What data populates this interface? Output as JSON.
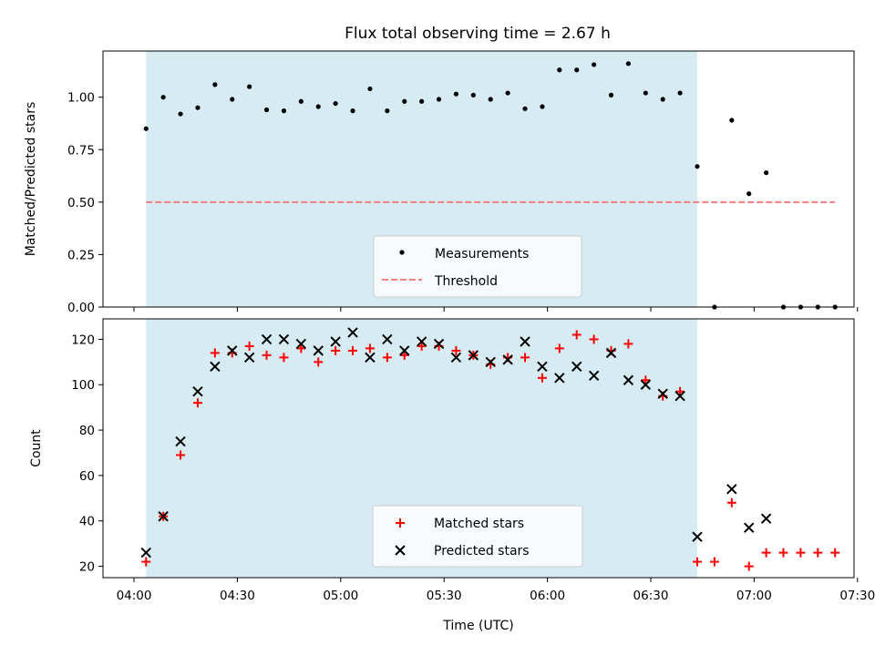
{
  "chart_data": [
    {
      "type": "scatter",
      "title": "Flux total observing time = 2.67 h",
      "ylabel": "Matched/Predicted stars",
      "ylim": [
        0,
        1.22
      ],
      "yticks": [
        "0.00",
        "0.25",
        "0.50",
        "0.75",
        "1.00"
      ],
      "xlim_minutes": [
        -9,
        209
      ],
      "shaded_span_minutes": [
        3.5,
        163.5
      ],
      "threshold": 0.5,
      "series": [
        {
          "name": "Measurements",
          "color": "#000000",
          "marker": "dot",
          "x": [
            3.5,
            8.5,
            13.5,
            18.5,
            23.5,
            28.5,
            33.5,
            38.5,
            43.5,
            48.5,
            53.5,
            58.5,
            63.5,
            68.5,
            73.5,
            78.5,
            83.5,
            88.5,
            93.5,
            98.5,
            103.5,
            108.5,
            113.5,
            118.5,
            123.5,
            128.5,
            133.5,
            138.5,
            143.5,
            148.5,
            153.5,
            158.5,
            163.5,
            168.5,
            173.5,
            178.5,
            183.5,
            188.5,
            193.5,
            198.5,
            203.5
          ],
          "y": [
            0.85,
            1.0,
            0.92,
            0.95,
            1.06,
            0.99,
            1.05,
            0.94,
            0.935,
            0.98,
            0.955,
            0.97,
            0.935,
            1.04,
            0.935,
            0.98,
            0.98,
            0.99,
            1.015,
            1.01,
            0.99,
            1.02,
            0.945,
            0.955,
            1.13,
            1.13,
            1.155,
            1.01,
            1.16,
            1.02,
            0.99,
            1.02,
            0.67,
            0.0,
            0.89,
            0.54,
            0.64,
            0.0,
            0.0,
            0.0,
            0.0
          ]
        },
        {
          "name": "Threshold",
          "color": "#f08080",
          "style": "dashed",
          "x": [
            3.5,
            203.5
          ],
          "y": [
            0.5,
            0.5
          ]
        }
      ],
      "legend": "bottom-center",
      "grid": false
    },
    {
      "type": "scatter",
      "xlabel": "Time (UTC)",
      "ylabel": "Count",
      "ylim": [
        15,
        129
      ],
      "yticks": [
        "20",
        "40",
        "60",
        "80",
        "100",
        "120"
      ],
      "xticks": [
        "04:00",
        "04:30",
        "05:00",
        "05:30",
        "06:00",
        "06:30",
        "07:00",
        "07:30"
      ],
      "xlim_minutes": [
        -9,
        209
      ],
      "shaded_span_minutes": [
        3.5,
        163.5
      ],
      "series": [
        {
          "name": "Matched stars",
          "color": "#ff0000",
          "marker": "plus",
          "x": [
            3.5,
            8.5,
            13.5,
            18.5,
            23.5,
            28.5,
            33.5,
            38.5,
            43.5,
            48.5,
            53.5,
            58.5,
            63.5,
            68.5,
            73.5,
            78.5,
            83.5,
            88.5,
            93.5,
            98.5,
            103.5,
            108.5,
            113.5,
            118.5,
            123.5,
            128.5,
            133.5,
            138.5,
            143.5,
            148.5,
            153.5,
            158.5,
            163.5,
            168.5,
            173.5,
            178.5,
            183.5,
            188.5,
            193.5,
            198.5,
            203.5
          ],
          "y": [
            22,
            42,
            69,
            92,
            114,
            114,
            117,
            113,
            112,
            116,
            110,
            115,
            115,
            116,
            112,
            113,
            117,
            117,
            115,
            113,
            109,
            112,
            112,
            103,
            116,
            122,
            120,
            115,
            118,
            102,
            95,
            97,
            22,
            22,
            48,
            20,
            26,
            26,
            26,
            26,
            26
          ]
        },
        {
          "name": "Predicted stars",
          "color": "#000000",
          "marker": "x",
          "x": [
            3.5,
            8.5,
            13.5,
            18.5,
            23.5,
            28.5,
            33.5,
            38.5,
            43.5,
            48.5,
            53.5,
            58.5,
            63.5,
            68.5,
            73.5,
            78.5,
            83.5,
            88.5,
            93.5,
            98.5,
            103.5,
            108.5,
            113.5,
            118.5,
            123.5,
            128.5,
            133.5,
            138.5,
            143.5,
            148.5,
            153.5,
            158.5,
            163.5,
            173.5,
            178.5,
            183.5
          ],
          "y": [
            26,
            42,
            75,
            97,
            108,
            115,
            112,
            120,
            120,
            118,
            115,
            119,
            123,
            112,
            120,
            115,
            119,
            118,
            112,
            113,
            110,
            111,
            119,
            108,
            103,
            108,
            104,
            114,
            102,
            100,
            96,
            95,
            33,
            54,
            37,
            41
          ]
        }
      ],
      "legend": "bottom-center",
      "grid": false
    }
  ]
}
